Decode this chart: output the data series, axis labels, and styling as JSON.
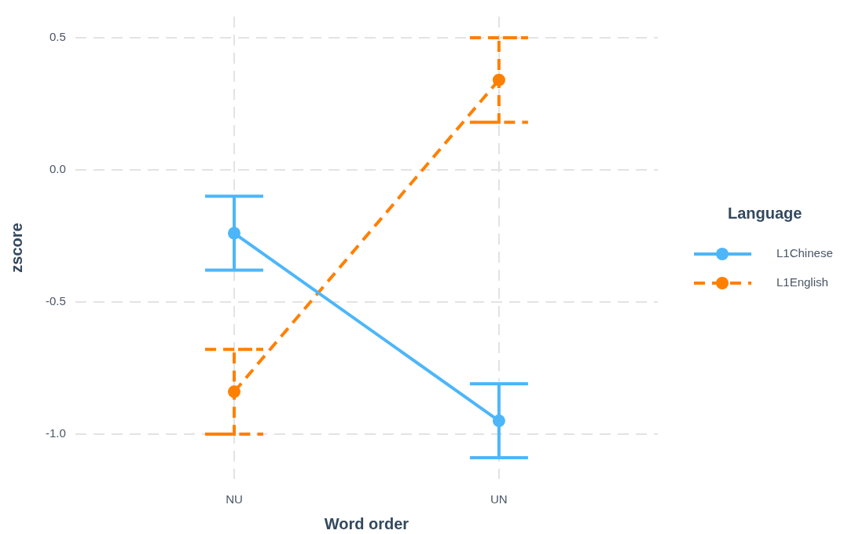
{
  "chart_data": {
    "type": "line",
    "xlabel": "Word order",
    "ylabel": "zscore",
    "legend_title": "Language",
    "categories": [
      "NU",
      "UN"
    ],
    "series": [
      {
        "name": "L1Chinese",
        "color": "#4db6f9",
        "values": [
          -0.24,
          -0.95
        ],
        "errors": [
          0.14,
          0.14
        ],
        "line_style": "solid"
      },
      {
        "name": "L1English",
        "color": "#ff8000",
        "values": [
          -0.84,
          0.34
        ],
        "errors": [
          0.16,
          0.16
        ],
        "line_style": "dashed"
      }
    ],
    "ylim": [
      -1.17,
      0.58
    ],
    "yticks": [
      {
        "value": -1,
        "label": "-1.0"
      },
      -0.5,
      {
        "value": 0,
        "label": "0.0"
      },
      0.5
    ],
    "grid": true,
    "legend": "right",
    "marker": "circle"
  }
}
